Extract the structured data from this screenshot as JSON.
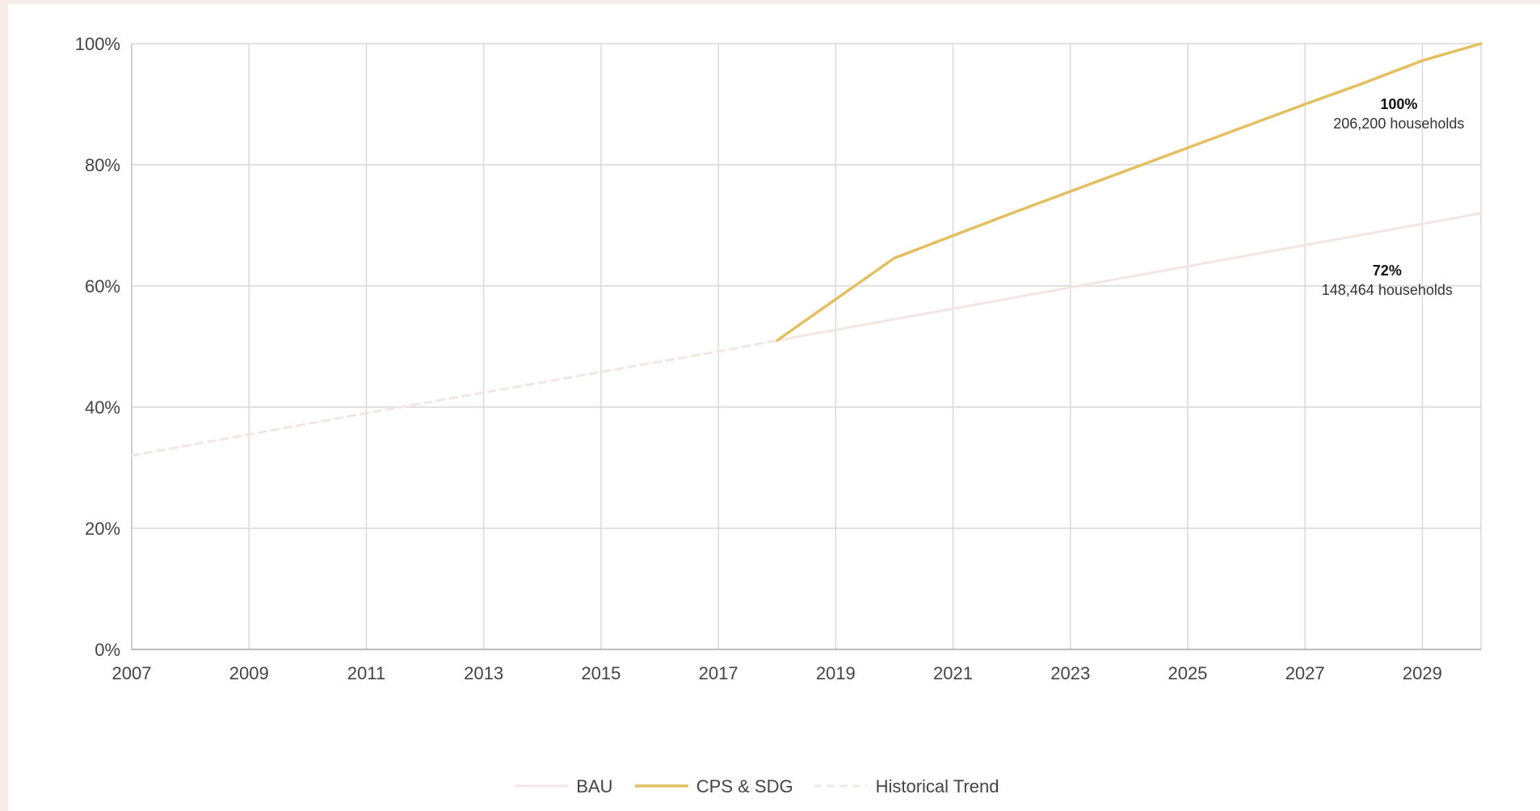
{
  "chart_data": {
    "type": "line",
    "title": "",
    "xlabel": "",
    "ylabel": "",
    "xlim": [
      2007,
      2030
    ],
    "ylim": [
      0,
      100
    ],
    "x_ticks": [
      "2007",
      "2009",
      "2011",
      "2013",
      "2015",
      "2017",
      "2019",
      "2021",
      "2023",
      "2025",
      "2027",
      "2029"
    ],
    "y_ticks": [
      "0%",
      "20%",
      "40%",
      "60%",
      "80%",
      "100%"
    ],
    "grid": true,
    "legend_position": "bottom-center",
    "series": [
      {
        "name": "BAU",
        "color": "#f2e6e2",
        "style": "solid",
        "points": [
          [
            2018,
            51
          ],
          [
            2020,
            54.5
          ],
          [
            2022,
            58
          ],
          [
            2024,
            61.5
          ],
          [
            2026,
            65
          ],
          [
            2028,
            68.5
          ],
          [
            2030,
            72
          ]
        ]
      },
      {
        "name": "CPS & SDG",
        "color": "#e3bf62",
        "style": "solid",
        "points": [
          [
            2018,
            51
          ],
          [
            2019,
            57.8
          ],
          [
            2020,
            64.6
          ],
          [
            2021,
            68.3
          ],
          [
            2022,
            72
          ],
          [
            2023,
            75.6
          ],
          [
            2024,
            79.2
          ],
          [
            2025,
            82.8
          ],
          [
            2026,
            86.4
          ],
          [
            2027,
            90
          ],
          [
            2028,
            93.5
          ],
          [
            2029,
            97.2
          ],
          [
            2030,
            100
          ]
        ]
      },
      {
        "name": "Historical Trend",
        "color": "#f2e6e2",
        "style": "dashed",
        "points": [
          [
            2007,
            32
          ],
          [
            2009,
            35.5
          ],
          [
            2011,
            39
          ],
          [
            2013,
            42.4
          ],
          [
            2015,
            45.8
          ],
          [
            2017,
            49.2
          ],
          [
            2018,
            51
          ]
        ]
      }
    ],
    "annotations": [
      {
        "value": "100%",
        "text": "206,200 households",
        "x": 2028.6,
        "y": 87.5
      },
      {
        "value": "72%",
        "text": "148,464 households",
        "x": 2028.4,
        "y": 60
      }
    ]
  }
}
